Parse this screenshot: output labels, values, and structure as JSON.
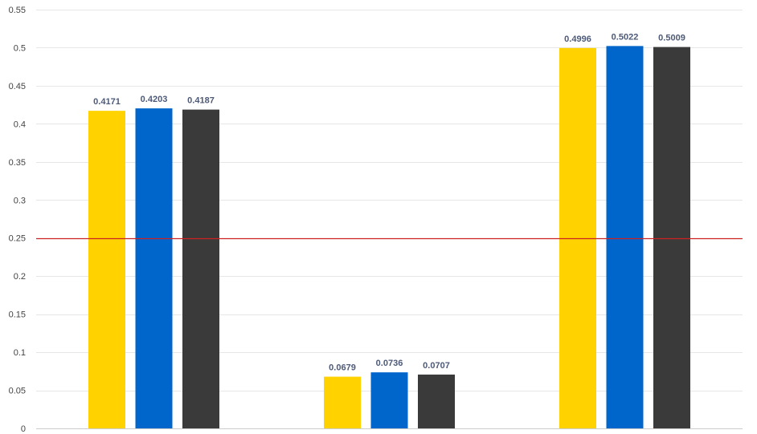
{
  "chart_data": {
    "type": "bar",
    "title": "",
    "xlabel": "",
    "ylabel": "",
    "ylim": [
      0,
      0.55
    ],
    "yticks": [
      "0",
      "0.05",
      "0.1",
      "0.15",
      "0.2",
      "0.25",
      "0.3",
      "0.35",
      "0.4",
      "0.45",
      "0.5",
      "0.55"
    ],
    "categories": [
      "",
      "",
      ""
    ],
    "grid": true,
    "legend": "none",
    "series": [
      {
        "color": "#ffd200",
        "values": [
          0.4171,
          0.0679,
          0.4996
        ],
        "labels": [
          "0.4171",
          "0.0679",
          "0.4996"
        ]
      },
      {
        "color": "#0066cc",
        "values": [
          0.4203,
          0.0736,
          0.5022
        ],
        "labels": [
          "0.4203",
          "0.0736",
          "0.5022"
        ]
      },
      {
        "color": "#3a3a3a",
        "values": [
          0.4187,
          0.0707,
          0.5009
        ],
        "labels": [
          "0.4187",
          "0.0707",
          "0.5009"
        ]
      }
    ],
    "reference_line": {
      "value": 0.25,
      "color": "#cc2222"
    }
  }
}
